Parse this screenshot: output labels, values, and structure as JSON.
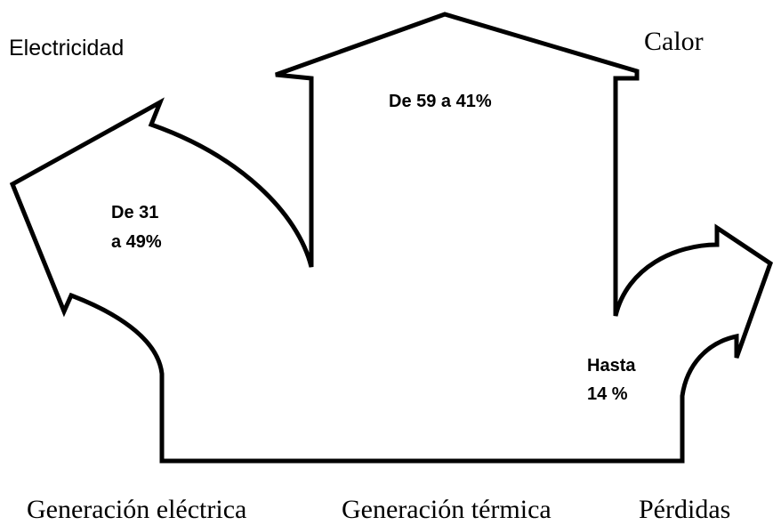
{
  "outputs": {
    "electricity": "Electricidad",
    "heat": "Calor"
  },
  "flows": {
    "heat": "De 59 a 41%",
    "electricity": [
      "De 31",
      "a 49%"
    ],
    "losses": [
      "Hasta",
      "14 %"
    ]
  },
  "inputs": [
    "Generación eléctrica",
    "Generación térmica",
    "Pérdidas"
  ]
}
